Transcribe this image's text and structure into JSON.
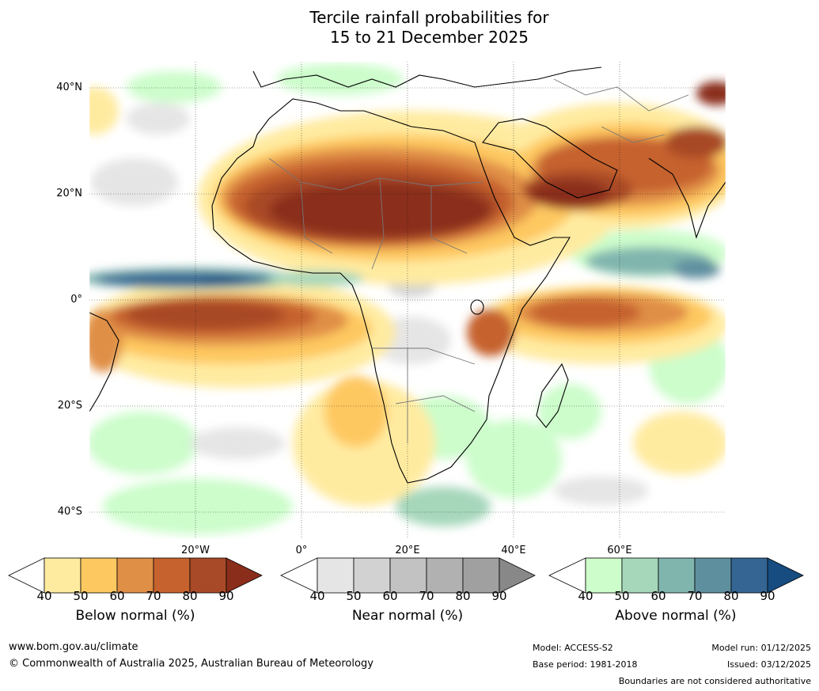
{
  "title": {
    "line1": "Tercile rainfall probabilities for",
    "line2": "15 to 21 December 2025"
  },
  "map": {
    "lat_labels": [
      "40°N",
      "20°N",
      "0°",
      "20°S",
      "40°S"
    ],
    "lon_labels": [
      "20°W",
      "0°",
      "20°E",
      "40°E",
      "60°E"
    ]
  },
  "legends": {
    "below": {
      "label": "Below normal (%)",
      "ticks": [
        "40",
        "50",
        "60",
        "70",
        "80",
        "90"
      ],
      "colors": [
        "#ffffff",
        "#ffeba0",
        "#fec861",
        "#e08f47",
        "#c6622e",
        "#a84a27",
        "#8b2d1b"
      ]
    },
    "near": {
      "label": "Near normal (%)",
      "ticks": [
        "40",
        "50",
        "60",
        "70",
        "80",
        "90"
      ],
      "colors": [
        "#ffffff",
        "#e5e5e5",
        "#d2d2d2",
        "#c2c2c2",
        "#b1b1b1",
        "#a0a0a0",
        "#888888"
      ]
    },
    "above": {
      "label": "Above normal (%)",
      "ticks": [
        "40",
        "50",
        "60",
        "70",
        "80",
        "90"
      ],
      "colors": [
        "#ffffff",
        "#ccfdcb",
        "#a6d7bb",
        "#80b5ae",
        "#5e8f9f",
        "#346593",
        "#164c80"
      ]
    }
  },
  "footer": {
    "website": "www.bom.gov.au/climate",
    "copyright": "© Commonwealth of Australia 2025, Australian Bureau of Meteorology",
    "model": "Model: ACCESS-S2",
    "base_period": "Base period: 1981-2018",
    "model_run": "Model run: 01/12/2025",
    "issued": "Issued: 03/12/2025",
    "boundaries": "Boundaries are not considered authoritative"
  }
}
